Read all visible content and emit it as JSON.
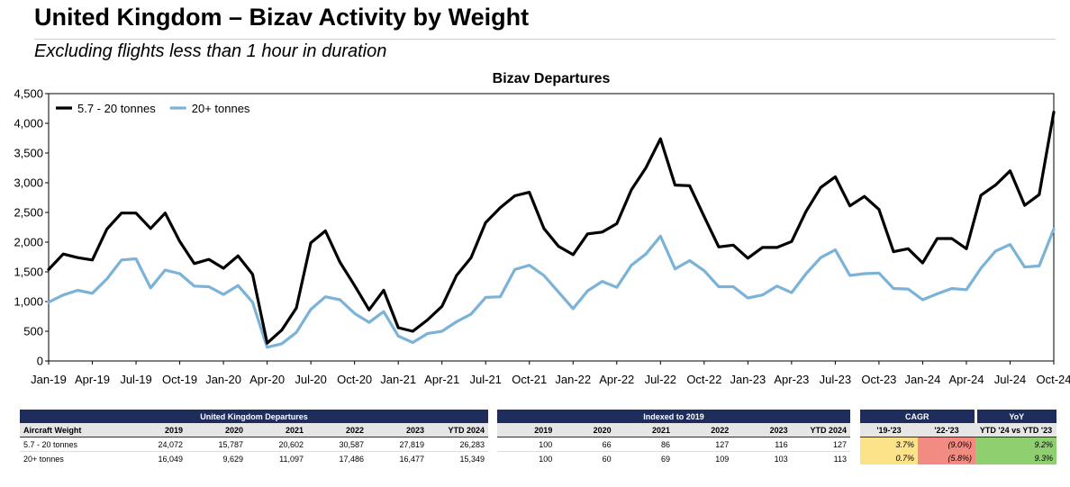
{
  "header": {
    "title": "United Kingdom – Bizav Activity by Weight",
    "subtitle": "Excluding flights less than 1 hour in duration"
  },
  "chart_data": {
    "type": "line",
    "title": "Bizav Departures",
    "ylim": [
      0,
      4500
    ],
    "yticks": [
      "0",
      "500",
      "1,000",
      "1,500",
      "2,000",
      "2,500",
      "3,000",
      "3,500",
      "4,000",
      "4,500"
    ],
    "x_ticks": [
      "Jan-19",
      "Apr-19",
      "Jul-19",
      "Oct-19",
      "Jan-20",
      "Apr-20",
      "Jul-20",
      "Oct-20",
      "Jan-21",
      "Apr-21",
      "Jul-21",
      "Oct-21",
      "Jan-22",
      "Apr-22",
      "Jul-22",
      "Oct-22",
      "Jan-23",
      "Apr-23",
      "Jul-23",
      "Oct-23",
      "Jan-24",
      "Apr-24",
      "Jul-24",
      "Oct-24"
    ],
    "legend_position": "top-left",
    "grid": false,
    "series": [
      {
        "name": "5.7 - 20 tonnes",
        "color": "#000000",
        "values": [
          1540,
          1800,
          1740,
          1700,
          2220,
          2490,
          2490,
          2230,
          2490,
          2010,
          1640,
          1710,
          1560,
          1770,
          1460,
          300,
          520,
          890,
          1990,
          2190,
          1660,
          1270,
          860,
          1190,
          560,
          500,
          690,
          920,
          1440,
          1740,
          2330,
          2580,
          2780,
          2840,
          2230,
          1930,
          1790,
          2140,
          2170,
          2310,
          2880,
          3250,
          3740,
          2960,
          2950,
          2430,
          1920,
          1950,
          1730,
          1910,
          1910,
          2010,
          2520,
          2920,
          3100,
          2610,
          2770,
          2550,
          1840,
          1890,
          1650,
          2060,
          2060,
          1890,
          2790,
          2960,
          3200,
          2620,
          2800,
          4190
        ]
      },
      {
        "name": "20+ tonnes",
        "color": "#7bb3d8",
        "values": [
          990,
          1110,
          1190,
          1140,
          1380,
          1700,
          1720,
          1230,
          1530,
          1470,
          1260,
          1250,
          1120,
          1270,
          990,
          230,
          290,
          480,
          870,
          1080,
          1030,
          800,
          650,
          830,
          420,
          310,
          460,
          500,
          660,
          790,
          1070,
          1080,
          1540,
          1610,
          1440,
          1160,
          880,
          1180,
          1340,
          1240,
          1610,
          1800,
          2100,
          1550,
          1690,
          1520,
          1250,
          1250,
          1060,
          1110,
          1260,
          1150,
          1470,
          1740,
          1870,
          1440,
          1470,
          1480,
          1220,
          1210,
          1030,
          1130,
          1220,
          1200,
          1560,
          1850,
          1960,
          1580,
          1600,
          2220
        ]
      }
    ]
  },
  "tables": {
    "departures": {
      "group_title": "United Kingdom Departures",
      "row_header": "Aircraft Weight",
      "columns": [
        "2019",
        "2020",
        "2021",
        "2022",
        "2023",
        "YTD 2024"
      ],
      "rows": [
        {
          "label": "5.7 - 20 tonnes",
          "values": [
            "24,072",
            "15,787",
            "20,602",
            "30,587",
            "27,819",
            "26,283"
          ]
        },
        {
          "label": "20+ tonnes",
          "values": [
            "16,049",
            "9,629",
            "11,097",
            "17,486",
            "16,477",
            "15,349"
          ]
        }
      ]
    },
    "indexed": {
      "group_title": "Indexed to 2019",
      "columns": [
        "2019",
        "2020",
        "2021",
        "2022",
        "2023",
        "YTD 2024"
      ],
      "rows": [
        [
          "100",
          "66",
          "86",
          "127",
          "116",
          "127"
        ],
        [
          "100",
          "60",
          "69",
          "109",
          "103",
          "113"
        ]
      ]
    },
    "growth": {
      "cagr_title": "CAGR",
      "yoy_title": "YoY",
      "columns": [
        "'19-'23",
        "'22-'23",
        "YTD '24 vs YTD '23"
      ],
      "rows": [
        [
          "3.7%",
          "(9.0%)",
          "9.2%"
        ],
        [
          "0.7%",
          "(5.8%)",
          "9.3%"
        ]
      ],
      "colors": {
        "yellow": "#fce38a",
        "red": "#f28b82",
        "green": "#8fcf6f"
      }
    }
  }
}
